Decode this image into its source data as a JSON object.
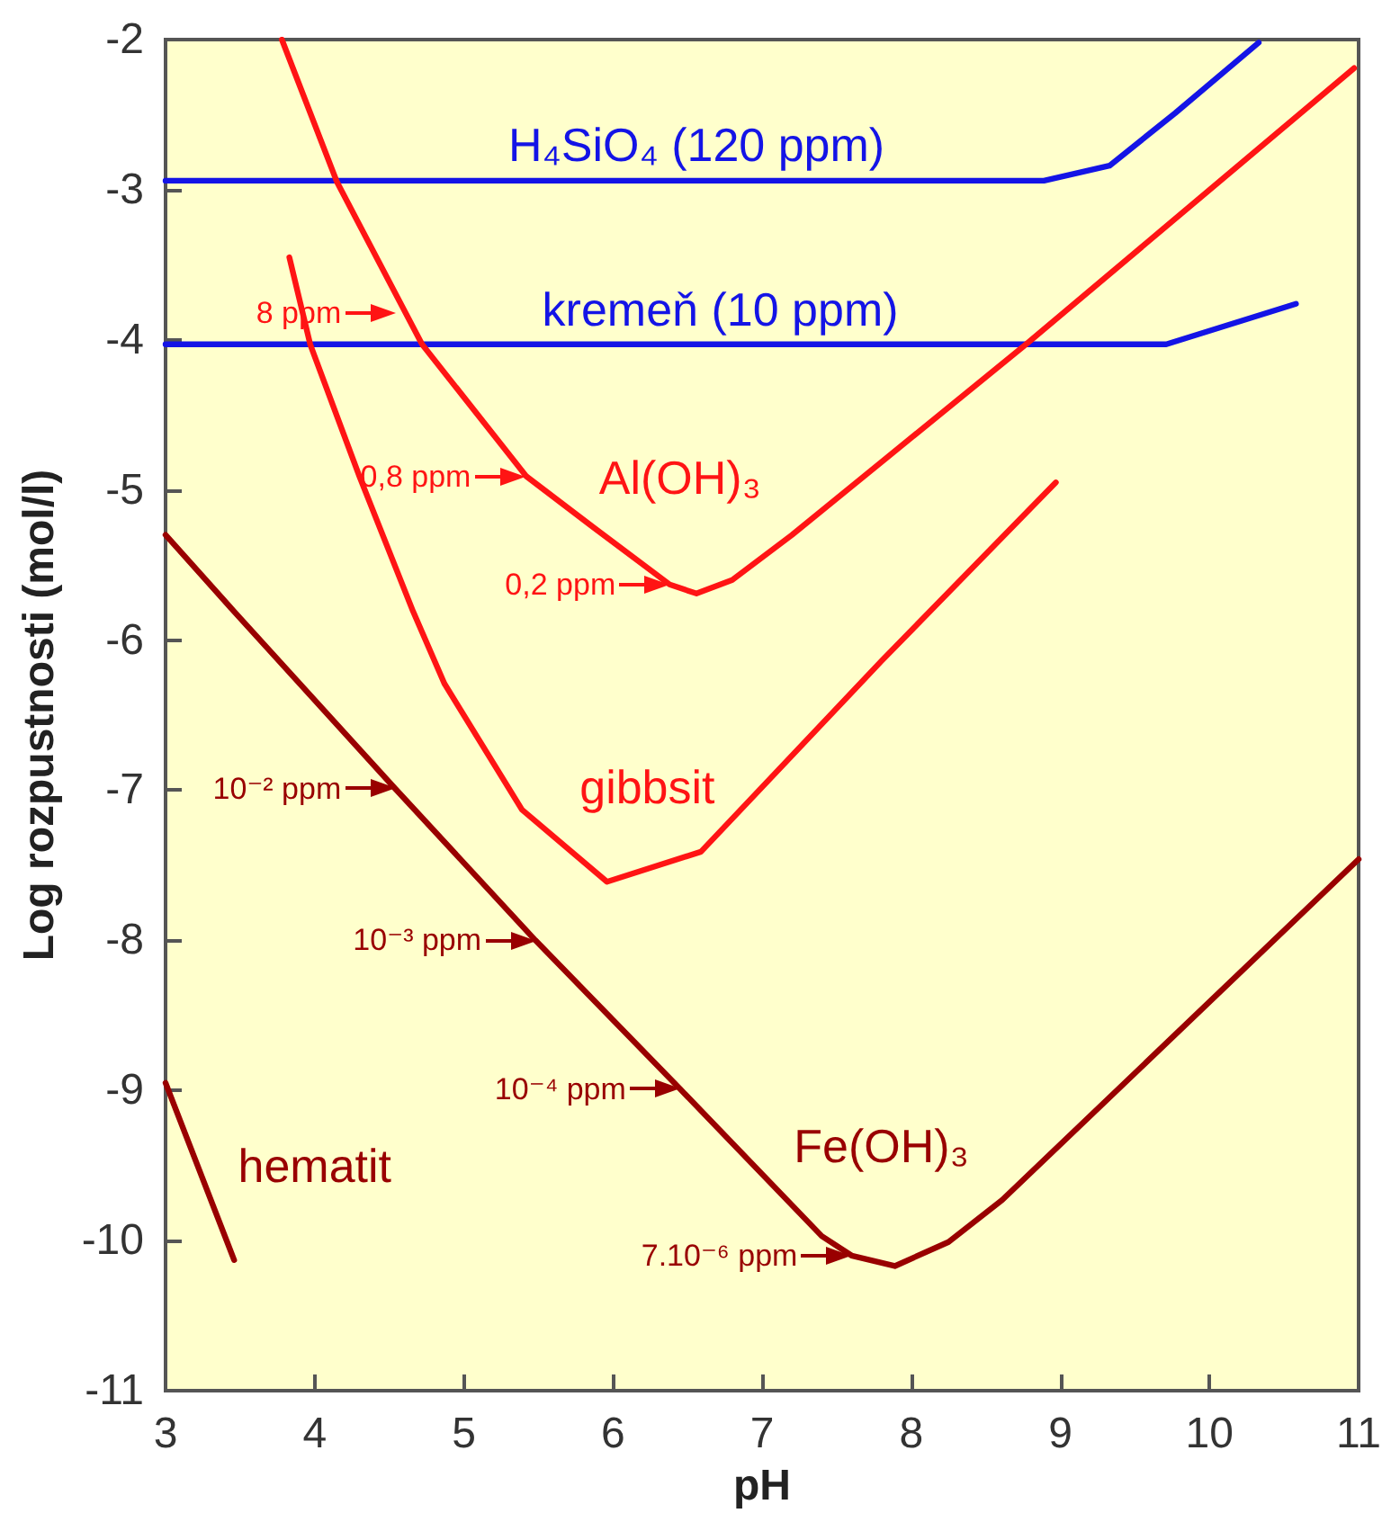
{
  "chart_data": {
    "type": "line",
    "xlabel": "pH",
    "ylabel": "Log rozpustnosti (mol/l)",
    "xlim": [
      3,
      11
    ],
    "xticks": [
      3,
      4,
      5,
      6,
      7,
      8,
      9,
      10,
      11
    ],
    "ylim": [
      -11,
      -2
    ],
    "yticks": [
      -11,
      -10,
      -9,
      -8,
      -7,
      -6,
      -5,
      -4,
      -3,
      -2
    ],
    "grid": false,
    "marker": "none",
    "line_style": "solid",
    "series": [
      {
        "name": "H₄SiO₄ (120 ppm)",
        "color": "#1414e6",
        "x": [
          3,
          8.89,
          9.33,
          9.77,
          10.33
        ],
        "values": [
          -2.94,
          -2.94,
          -2.84,
          -2.49,
          -2.02
        ]
      },
      {
        "name": "kremeň (10 ppm)",
        "color": "#1414e6",
        "x": [
          3,
          9.71,
          10.58
        ],
        "values": [
          -4.03,
          -4.03,
          -3.76
        ]
      },
      {
        "name": "Al(OH)₃",
        "color": "#ff1414",
        "x": [
          3.78,
          4.15,
          4.72,
          5.42,
          5.87,
          6.38,
          6.56,
          6.8,
          7.2,
          8.77,
          10.97
        ],
        "values": [
          -2,
          -2.95,
          -4.03,
          -4.91,
          -5.25,
          -5.63,
          -5.69,
          -5.6,
          -5.3,
          -4.03,
          -2.19
        ]
      },
      {
        "name": "gibbsit",
        "color": "#ff1414",
        "x": [
          3.83,
          3.97,
          4.3,
          4.66,
          4.87,
          5.39,
          5.96,
          6.59,
          7.8,
          8.97
        ],
        "values": [
          -3.45,
          -4.03,
          -4.91,
          -5.81,
          -6.29,
          -7.13,
          -7.61,
          -7.41,
          -6.14,
          -4.95
        ]
      },
      {
        "name": "Fe(OH)₃",
        "color": "#990000",
        "x": [
          3,
          3.46,
          4.54,
          5.48,
          6.45,
          7.4,
          7.6,
          7.89,
          8.25,
          8.61,
          11
        ],
        "values": [
          -5.3,
          -5.81,
          -6.99,
          -8.0,
          -8.99,
          -9.97,
          -10.1,
          -10.17,
          -10.01,
          -9.73,
          -7.46
        ]
      },
      {
        "name": "hematit",
        "color": "#990000",
        "x": [
          3,
          3.46
        ],
        "values": [
          -8.95,
          -10.13
        ]
      }
    ],
    "annotations": [
      {
        "text": "8 ppm",
        "x": 4.54,
        "y": -3.82
      },
      {
        "text": "0,8 ppm",
        "x": 5.41,
        "y": -4.91
      },
      {
        "text": "0,2 ppm",
        "x": 6.38,
        "y": -5.63
      },
      {
        "text": "10⁻² ppm",
        "x": 4.54,
        "y": -6.99
      },
      {
        "text": "10⁻³ ppm",
        "x": 5.48,
        "y": -8.0
      },
      {
        "text": "10⁻⁴ ppm",
        "x": 6.45,
        "y": -8.99
      },
      {
        "text": "7.10⁻⁶ ppm",
        "x": 7.6,
        "y": -10.1
      }
    ]
  }
}
